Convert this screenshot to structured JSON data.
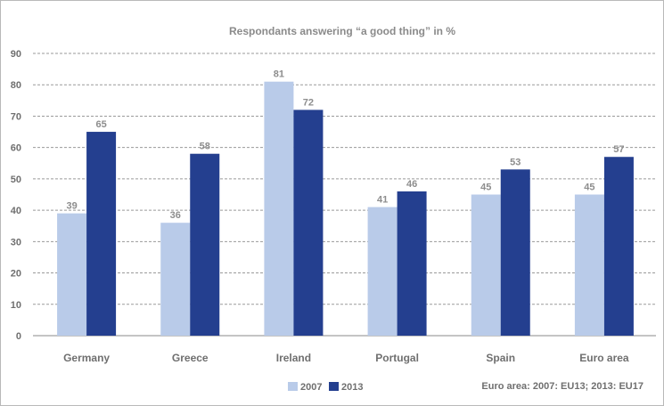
{
  "chart_data": {
    "type": "bar",
    "title": "Respondants answering “a good thing” in %",
    "categories": [
      "Germany",
      "Greece",
      "Ireland",
      "Portugal",
      "Spain",
      "Euro area"
    ],
    "series": [
      {
        "name": "2007",
        "values": [
          39,
          36,
          81,
          41,
          45,
          45
        ],
        "color": "#b9cbe9"
      },
      {
        "name": "2013",
        "values": [
          65,
          58,
          72,
          46,
          53,
          57
        ],
        "color": "#243f8f"
      }
    ],
    "ylim": [
      0,
      90
    ],
    "yticks": [
      0,
      10,
      20,
      30,
      40,
      50,
      60,
      70,
      80,
      90
    ],
    "grid": true,
    "legend_position": "bottom-center",
    "note": "Euro area: 2007: EU13; 2013: EU17"
  }
}
